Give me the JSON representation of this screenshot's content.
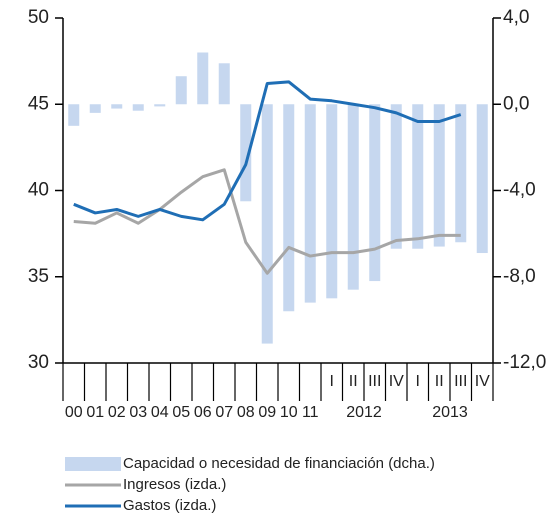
{
  "chart_data": {
    "type": "bar-line",
    "categories": [
      "00",
      "01",
      "02",
      "03",
      "04",
      "05",
      "06",
      "07",
      "08",
      "09",
      "10",
      "11",
      "I",
      "II",
      "III",
      "IV",
      "I",
      "II",
      "III",
      "IV"
    ],
    "groups": [
      "2012",
      "2013"
    ],
    "series": [
      {
        "name": "Capacidad o necesidad de financiación  (dcha.)",
        "type": "bar",
        "axis": "y2",
        "color": "#c6d7ef",
        "values": [
          -1.0,
          -0.4,
          -0.2,
          -0.3,
          -0.1,
          1.3,
          2.4,
          1.9,
          -4.5,
          -11.1,
          -9.6,
          -9.2,
          -9.0,
          -8.6,
          -8.2,
          -6.7,
          -6.7,
          -6.6,
          -6.4,
          -6.9
        ]
      },
      {
        "name": "Ingresos (izda.)",
        "type": "line",
        "color": "#a6a6a6",
        "values": [
          38.2,
          38.1,
          38.7,
          38.1,
          38.9,
          39.9,
          40.8,
          41.2,
          37.0,
          35.2,
          36.7,
          36.2,
          36.4,
          36.4,
          36.6,
          37.1,
          37.2,
          37.4,
          37.4,
          null
        ]
      },
      {
        "name": "Gastos (izda.)",
        "type": "line",
        "color": "#1f6eb5",
        "values": [
          39.2,
          38.7,
          38.9,
          38.5,
          38.9,
          38.5,
          38.3,
          39.2,
          41.5,
          46.2,
          46.3,
          45.3,
          45.2,
          45.0,
          44.8,
          44.5,
          44.0,
          44.0,
          44.4,
          null
        ]
      }
    ],
    "ylim": [
      30,
      50
    ],
    "yticks": [
      30,
      35,
      40,
      45,
      50
    ],
    "y2lim": [
      -12,
      4
    ],
    "y2ticks": [
      {
        "value": -12,
        "label": "-12,0"
      },
      {
        "value": -8,
        "label": "-8,0"
      },
      {
        "value": -4,
        "label": "-4,0"
      },
      {
        "value": 0,
        "label": "0,0"
      },
      {
        "value": 4,
        "label": "4,0"
      }
    ]
  }
}
